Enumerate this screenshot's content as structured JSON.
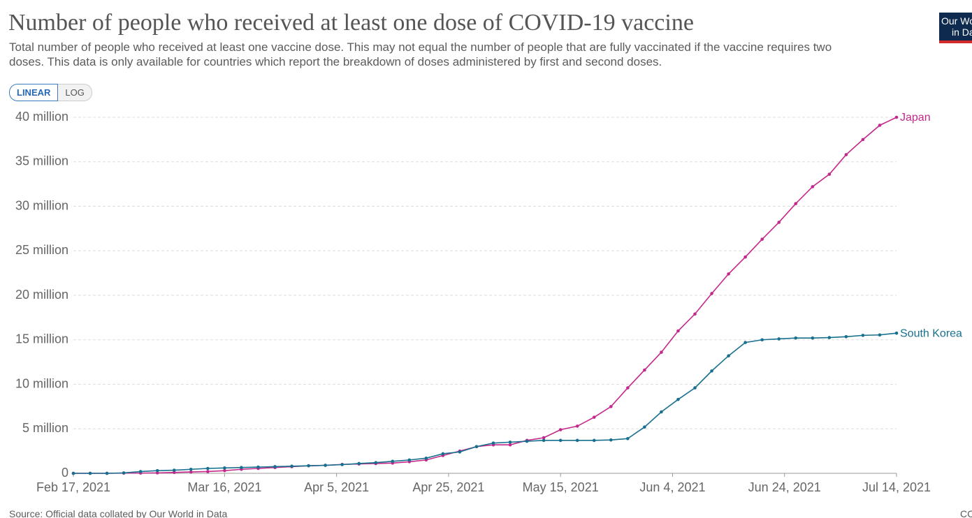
{
  "chart_data": {
    "type": "line",
    "title": "Number of people who received at least one dose of COVID-19 vaccine",
    "subtitle": "Total number of people who received at least one vaccine dose. This may not equal the number of people that are fully vaccinated if the vaccine requires two doses. This data is only available for countries which report the breakdown of doses administered by first and second doses.",
    "scale_buttons": [
      "LINEAR",
      "LOG"
    ],
    "log": false,
    "grid": true,
    "logo": [
      "Our World",
      "in Data"
    ],
    "source": "Source: Official data collated by Our World in Data",
    "license": "CC BY",
    "x": [
      "2021-02-17",
      "2021-02-20",
      "2021-02-23",
      "2021-02-26",
      "2021-03-01",
      "2021-03-04",
      "2021-03-07",
      "2021-03-10",
      "2021-03-13",
      "2021-03-16",
      "2021-03-19",
      "2021-03-22",
      "2021-03-25",
      "2021-03-28",
      "2021-03-31",
      "2021-04-03",
      "2021-04-06",
      "2021-04-09",
      "2021-04-12",
      "2021-04-15",
      "2021-04-18",
      "2021-04-21",
      "2021-04-24",
      "2021-04-27",
      "2021-04-30",
      "2021-05-03",
      "2021-05-06",
      "2021-05-09",
      "2021-05-12",
      "2021-05-15",
      "2021-05-18",
      "2021-05-21",
      "2021-05-24",
      "2021-05-27",
      "2021-05-30",
      "2021-06-02",
      "2021-06-05",
      "2021-06-08",
      "2021-06-11",
      "2021-06-14",
      "2021-06-17",
      "2021-06-20",
      "2021-06-23",
      "2021-06-26",
      "2021-06-29",
      "2021-07-02",
      "2021-07-05",
      "2021-07-08",
      "2021-07-11",
      "2021-07-14"
    ],
    "series": [
      {
        "name": "Japan",
        "color": "#c4288a",
        "values": [
          0,
          0,
          0,
          20000,
          30000,
          50000,
          100000,
          150000,
          200000,
          300000,
          450000,
          550000,
          650000,
          750000,
          850000,
          900000,
          1000000,
          1050000,
          1100000,
          1150000,
          1300000,
          1500000,
          2000000,
          2500000,
          3000000,
          3200000,
          3200000,
          3700000,
          4000000,
          4900000,
          5300000,
          6300000,
          7500000,
          9600000,
          11600000,
          13600000,
          16000000,
          17900000,
          20200000,
          22400000,
          24300000,
          26300000,
          28200000,
          30300000,
          32200000,
          33600000,
          35800000,
          37500000,
          39100000,
          40000000
        ]
      },
      {
        "name": "South Korea",
        "color": "#18708f",
        "values": [
          0,
          0,
          0,
          50000,
          200000,
          300000,
          350000,
          450000,
          550000,
          600000,
          650000,
          700000,
          750000,
          800000,
          850000,
          900000,
          980000,
          1100000,
          1200000,
          1350000,
          1500000,
          1700000,
          2200000,
          2400000,
          3000000,
          3400000,
          3500000,
          3600000,
          3700000,
          3700000,
          3700000,
          3700000,
          3750000,
          3900000,
          5200000,
          6900000,
          8300000,
          9600000,
          11500000,
          13200000,
          14700000,
          15000000,
          15100000,
          15200000,
          15200000,
          15250000,
          15350000,
          15500000,
          15550000,
          15750000
        ]
      }
    ],
    "xlim": [
      "2021-02-17",
      "2021-07-14"
    ],
    "xticks": [
      {
        "value": "2021-02-17",
        "label": "Feb 17, 2021"
      },
      {
        "value": "2021-03-16",
        "label": "Mar 16, 2021"
      },
      {
        "value": "2021-04-05",
        "label": "Apr 5, 2021"
      },
      {
        "value": "2021-04-25",
        "label": "Apr 25, 2021"
      },
      {
        "value": "2021-05-15",
        "label": "May 15, 2021"
      },
      {
        "value": "2021-06-04",
        "label": "Jun 4, 2021"
      },
      {
        "value": "2021-06-24",
        "label": "Jun 24, 2021"
      },
      {
        "value": "2021-07-14",
        "label": "Jul 14, 2021"
      }
    ],
    "ylim": [
      0,
      40000000
    ],
    "yticks": [
      0,
      {
        "value": 5000000,
        "label": "5 million"
      },
      {
        "value": 10000000,
        "label": "10 million"
      },
      {
        "value": 15000000,
        "label": "15 million"
      },
      {
        "value": 20000000,
        "label": "20 million"
      },
      {
        "value": 25000000,
        "label": "25 million"
      },
      {
        "value": 30000000,
        "label": "30 million"
      },
      {
        "value": 35000000,
        "label": "35 million"
      },
      {
        "value": 40000000,
        "label": "40 million"
      }
    ]
  }
}
